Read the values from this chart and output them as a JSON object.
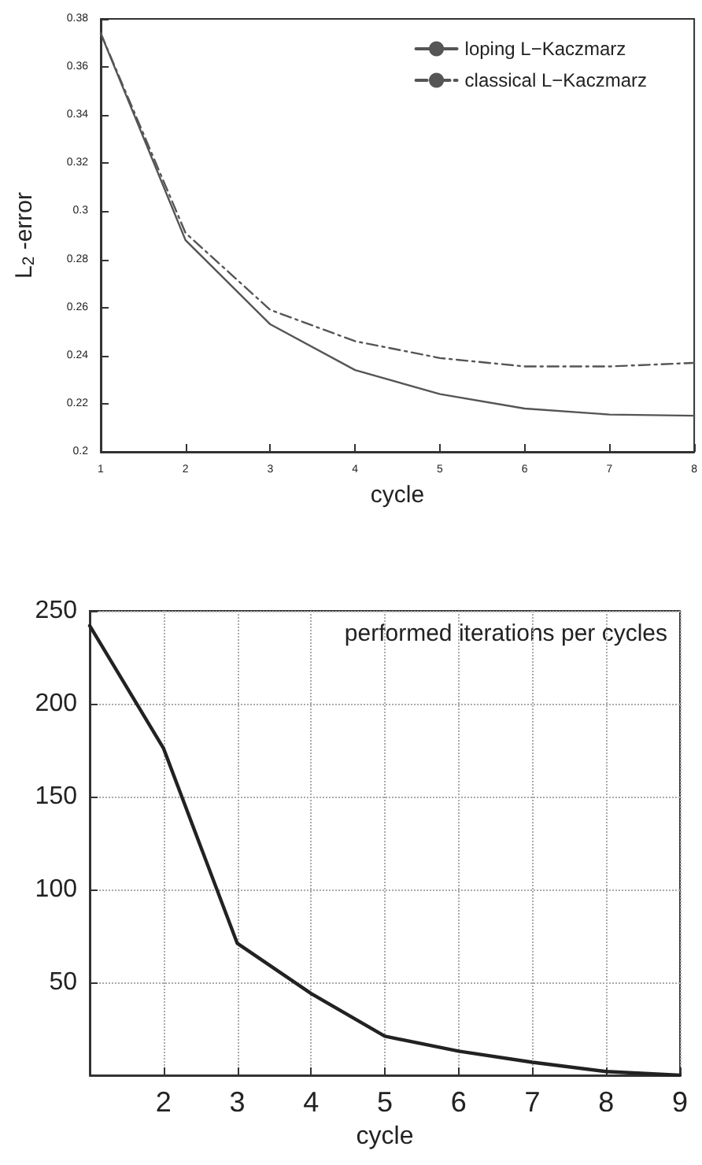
{
  "chart_data": [
    {
      "type": "line",
      "xlabel": "cycle",
      "ylabel": "L$_{2}$ -error",
      "x": [
        1,
        2,
        3,
        4,
        5,
        6,
        7,
        8
      ],
      "series": [
        {
          "name": "loping L−Kaczmarz",
          "color": "#555555",
          "line_style": "solid",
          "values": [
            0.374,
            0.288,
            0.253,
            0.234,
            0.224,
            0.218,
            0.2155,
            0.215
          ]
        },
        {
          "name": "classical L−Kaczmarz",
          "color": "#555555",
          "line_style": "dashed",
          "values": [
            0.374,
            0.291,
            0.259,
            0.246,
            0.239,
            0.2355,
            0.2355,
            0.237
          ]
        }
      ],
      "xlim": [
        1,
        8
      ],
      "xticks": [
        1,
        2,
        3,
        4,
        5,
        6,
        7,
        8
      ],
      "ylim": [
        0.2,
        0.38
      ],
      "yticks": [
        0.2,
        0.22,
        0.24,
        0.26,
        0.28,
        0.3,
        0.32,
        0.34,
        0.36,
        0.38
      ],
      "grid": false,
      "legend": "top right",
      "marker": "none"
    },
    {
      "type": "line",
      "xlabel": "cycle",
      "annotations": [
        "performed iterations per cycles"
      ],
      "x": [
        1,
        2,
        3,
        4,
        5,
        6,
        7,
        8,
        9
      ],
      "series": [
        {
          "color": "#222222",
          "line_style": "solid",
          "values": [
            242,
            176,
            71,
            44,
            21,
            13,
            7,
            2,
            0
          ]
        }
      ],
      "xlim": [
        1,
        9
      ],
      "xticks": [
        2,
        3,
        4,
        5,
        6,
        7,
        8,
        9
      ],
      "ylim": [
        0,
        250
      ],
      "yticks": [
        {
          "value": 0,
          "label": null
        },
        50,
        100,
        150,
        200,
        250
      ],
      "grid": true,
      "legend": false,
      "marker": "none"
    }
  ]
}
